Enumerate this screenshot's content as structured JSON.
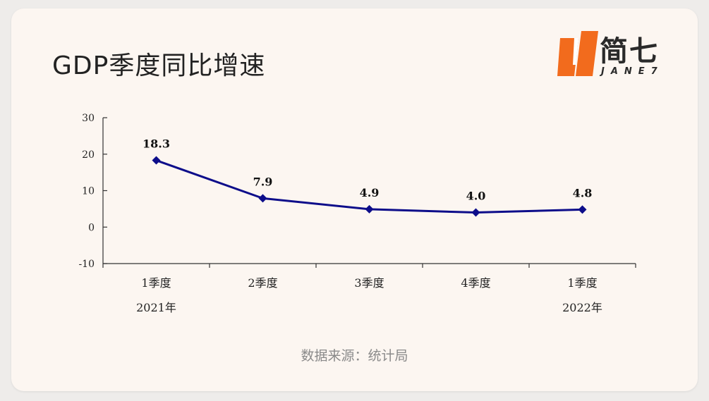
{
  "header": {
    "title": "GDP季度同比增速"
  },
  "logo": {
    "name_cn": "简七",
    "name_en": "JANE7",
    "accent_color": "#f26b1d"
  },
  "chart_data": {
    "type": "line",
    "categories": [
      "1季度",
      "2季度",
      "3季度",
      "4季度",
      "1季度"
    ],
    "category_sublabels": [
      "2021年",
      "",
      "",
      "",
      "2022年"
    ],
    "series": [
      {
        "values": [
          18.3,
          7.9,
          4.9,
          4.0,
          4.8
        ],
        "color": "#0d0d8a"
      }
    ],
    "data_labels": [
      "18.3",
      "7.9",
      "4.9",
      "4.0",
      "4.8"
    ],
    "yticks": [
      "-10",
      "0",
      "10",
      "20",
      "30"
    ],
    "ylim": [
      -10,
      30
    ],
    "marker": "diamond",
    "grid": false,
    "legend": "none"
  },
  "footer": {
    "source": "数据来源：统计局"
  }
}
